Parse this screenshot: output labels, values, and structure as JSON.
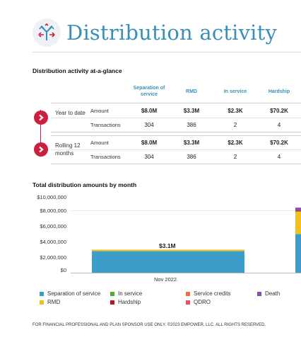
{
  "header": {
    "title": "Distribution activity",
    "icon": "direction-arrows-icon"
  },
  "glance": {
    "title": "Distribution activity at-a-glance",
    "columns": [
      "Separation of service",
      "RMD",
      "In service",
      "Hardship"
    ],
    "groups": [
      {
        "label": "Year to date",
        "rows": [
          {
            "label": "Amount",
            "values": [
              "$8.0M",
              "$3.3M",
              "$2.3K",
              "$70.2K"
            ]
          },
          {
            "label": "Transactions",
            "values": [
              "304",
              "386",
              "2",
              "4"
            ]
          }
        ]
      },
      {
        "label": "Rolling 12 months",
        "rows": [
          {
            "label": "Amount",
            "values": [
              "$8.0M",
              "$3.3M",
              "$2.3K",
              "$70.2K"
            ]
          },
          {
            "label": "Transactions",
            "values": [
              "304",
              "386",
              "2",
              "4"
            ]
          }
        ]
      }
    ]
  },
  "chart_section": {
    "title": "Total distribution amounts by month"
  },
  "chart_data": {
    "type": "bar",
    "stacked": true,
    "title": "Total distribution amounts by month",
    "categories": [
      "Nov 2022",
      ""
    ],
    "ylim": [
      0,
      10000000
    ],
    "yticks": [
      "$10,000,000",
      "$8,000,000",
      "$6,000,000",
      "$4,000,000",
      "$2,000,000",
      "$0"
    ],
    "ytick_values": [
      10000000,
      8000000,
      6000000,
      4000000,
      2000000,
      0
    ],
    "grid": true,
    "legend_position": "bottom",
    "data_labels": [
      "$3.1M",
      ""
    ],
    "series": [
      {
        "name": "Separation of service",
        "color": "#3d9cc8",
        "values": [
          2900000,
          5200000
        ]
      },
      {
        "name": "RMD",
        "color": "#f2c11d",
        "values": [
          200000,
          3000000
        ]
      },
      {
        "name": "In service",
        "color": "#5aa832",
        "values": [
          0,
          50000
        ]
      },
      {
        "name": "Hardship",
        "color": "#b5152e",
        "values": [
          0,
          100000
        ]
      },
      {
        "name": "Service credits",
        "color": "#e8733a",
        "values": [
          0,
          0
        ]
      },
      {
        "name": "QDRO",
        "color": "#e0536e",
        "values": [
          0,
          0
        ]
      },
      {
        "name": "Death",
        "color": "#8c4fa8",
        "values": [
          0,
          400000
        ]
      }
    ]
  },
  "footer": {
    "text": "FOR FINANCIAL PROFESSIONAL AND PLAN SPONSOR USE ONLY. ©2023 EMPOWER, LLC. ALL RIGHTS RESERVED."
  }
}
